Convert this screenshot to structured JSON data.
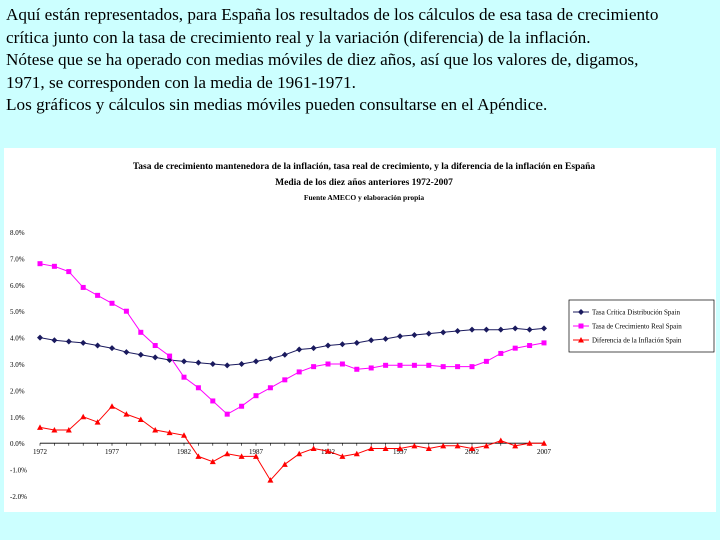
{
  "intro": {
    "lines": [
      "Aquí están representados, para España los resultados de los cálculos de esa tasa de crecimiento",
      "crítica junto con la tasa de crecimiento real y la variación (diferencia) de la inflación.",
      "Nótese que se ha operado con medias móviles de diez años, así que los valores de, digamos,",
      "1971, se corresponden con la media de 1961-1971.",
      "Los gráficos y cálculos sin medias móviles pueden consultarse en el Apéndice."
    ]
  },
  "colors": {
    "background": "#ccffff",
    "series": [
      "#1a1a5e",
      "#ff00ff",
      "#ff0000"
    ]
  },
  "chart_data": {
    "type": "line",
    "title": "Tasa de crecimiento mantenedora de la inflación, tasa real de crecimiento, y la diferencia de la inflación en España",
    "subtitle": "Media de los diez años anteriores 1972-2007",
    "source": "Fuente AMECO y elaboración propia",
    "xlabel": "",
    "ylabel": "",
    "x": [
      1972,
      1973,
      1974,
      1975,
      1976,
      1977,
      1978,
      1979,
      1980,
      1981,
      1982,
      1983,
      1984,
      1985,
      1986,
      1987,
      1988,
      1989,
      1990,
      1991,
      1992,
      1993,
      1994,
      1995,
      1996,
      1997,
      1998,
      1999,
      2000,
      2001,
      2002,
      2003,
      2004,
      2005,
      2006,
      2007
    ],
    "x_tick_labels": [
      "1972",
      "1977",
      "1982",
      "1987",
      "1992",
      "1997",
      "2002",
      "2007"
    ],
    "x_tick_values": [
      1972,
      1977,
      1982,
      1987,
      1992,
      1997,
      2002,
      2007
    ],
    "y_tick_labels": [
      "8.0%",
      "7.0%",
      "6.0%",
      "5.0%",
      "4.0%",
      "3.0%",
      "2.0%",
      "1.0%",
      "0.0%",
      "-1.0%",
      "-2.0%"
    ],
    "y_tick_values": [
      8,
      7,
      6,
      5,
      4,
      3,
      2,
      1,
      0,
      -1,
      -2
    ],
    "ylim": [
      -2,
      8
    ],
    "legend_position": "right",
    "series": [
      {
        "name": "Tasa Crítica Distribución Spain",
        "marker": "diamond",
        "values": [
          4.0,
          3.9,
          3.85,
          3.8,
          3.7,
          3.6,
          3.45,
          3.35,
          3.25,
          3.15,
          3.1,
          3.05,
          3.0,
          2.95,
          3.0,
          3.1,
          3.2,
          3.35,
          3.55,
          3.6,
          3.7,
          3.75,
          3.8,
          3.9,
          3.95,
          4.05,
          4.1,
          4.15,
          4.2,
          4.25,
          4.3,
          4.3,
          4.3,
          4.35,
          4.3,
          4.35
        ]
      },
      {
        "name": "Tasa de Crecimiento Real Spain",
        "marker": "square",
        "values": [
          6.8,
          6.7,
          6.5,
          5.9,
          5.6,
          5.3,
          5.0,
          4.2,
          3.7,
          3.3,
          2.5,
          2.1,
          1.6,
          1.1,
          1.4,
          1.8,
          2.1,
          2.4,
          2.7,
          2.9,
          3.0,
          3.0,
          2.8,
          2.85,
          2.95,
          2.95,
          2.95,
          2.95,
          2.9,
          2.9,
          2.9,
          3.1,
          3.4,
          3.6,
          3.7,
          3.8
        ]
      },
      {
        "name": "Diferencia de la Inflación Spain",
        "marker": "triangle",
        "values": [
          0.6,
          0.5,
          0.5,
          1.0,
          0.8,
          1.4,
          1.1,
          0.9,
          0.5,
          0.4,
          0.3,
          -0.5,
          -0.7,
          -0.4,
          -0.5,
          -0.5,
          -1.4,
          -0.8,
          -0.4,
          -0.2,
          -0.3,
          -0.5,
          -0.4,
          -0.2,
          -0.2,
          -0.2,
          -0.1,
          -0.2,
          -0.1,
          -0.1,
          -0.2,
          -0.1,
          0.1,
          -0.1,
          0.0,
          0.0
        ]
      }
    ]
  }
}
